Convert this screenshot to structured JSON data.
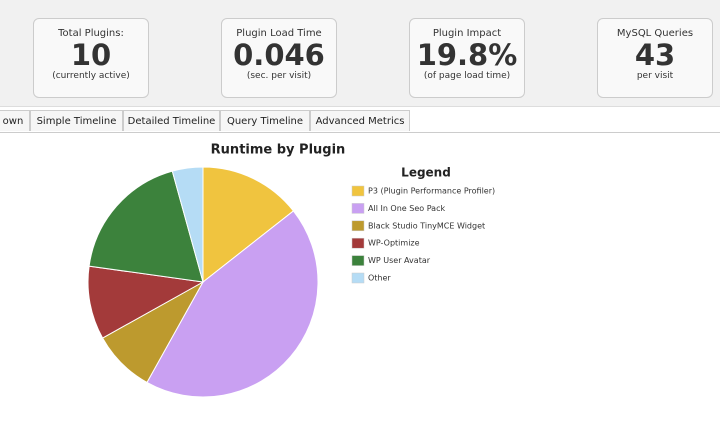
{
  "cards": [
    {
      "label": "Total Plugins:",
      "value": "10",
      "note": "(currently active)"
    },
    {
      "label": "Plugin Load Time",
      "value": "0.046",
      "note": "(sec. per visit)"
    },
    {
      "label": "Plugin Impact",
      "value": "19.8%",
      "note": "(of page load time)"
    },
    {
      "label": "MySQL Queries",
      "value": "43",
      "note": "per visit"
    }
  ],
  "tabs": [
    "own",
    "Simple Timeline",
    "Detailed Timeline",
    "Query Timeline",
    "Advanced Metrics"
  ],
  "chart_data": {
    "type": "pie",
    "title": "Runtime by Plugin",
    "legend_title": "Legend",
    "categories": [
      "P3 (Plugin Performance Profiler)",
      "All In One Seo Pack",
      "Black Studio TinyMCE Widget",
      "WP-Optimize",
      "WP User Avatar",
      "Other"
    ],
    "values": [
      14.4,
      43.7,
      8.8,
      10.3,
      18.5,
      4.3
    ],
    "colors": [
      "#f0c43f",
      "#c9a0f2",
      "#bd9a2e",
      "#a33a3a",
      "#3c823c",
      "#b5dcf5"
    ]
  }
}
